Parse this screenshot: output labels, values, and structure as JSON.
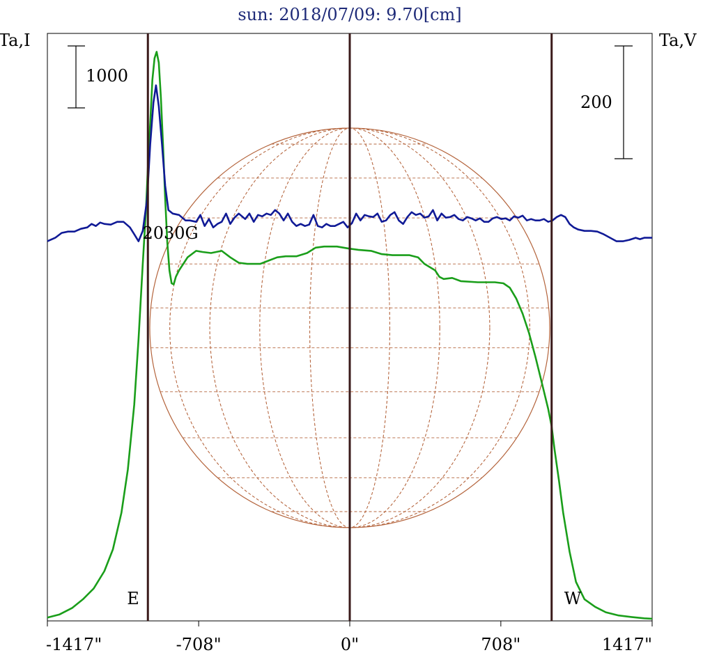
{
  "chart_data": {
    "type": "line",
    "title": "sun: 2018/07/09: 9.70[cm]",
    "ylabel_left": "Ta,I",
    "ylabel_right": "Ta,V",
    "scale_bar_left": "1000",
    "scale_bar_right": "200",
    "xlim": [
      -1417,
      1417
    ],
    "x_ticks": [
      {
        "value": -1417,
        "label": "-1417\""
      },
      {
        "value": -708,
        "label": "-708\""
      },
      {
        "value": 0,
        "label": "0\""
      },
      {
        "value": 708,
        "label": "708\""
      },
      {
        "value": 1417,
        "label": "1417\""
      }
    ],
    "limb_lines": [
      -946,
      0,
      946
    ],
    "limb_labels": [
      {
        "x": -946,
        "text": "E"
      },
      {
        "x": 946,
        "text": "W"
      }
    ],
    "annotation": {
      "x": -860,
      "text": "2030G"
    },
    "colors": {
      "intensity": "#1a9e1a",
      "polarization": "#101a96",
      "limb_line": "#3a1a1a",
      "disk": "#b4643c",
      "axes": "#000000",
      "title": "#1e2a78"
    },
    "series": [
      {
        "key": "I",
        "ylim": [
          0,
          2715
        ],
        "points": [
          [
            -1417,
            15
          ],
          [
            -1360,
            30
          ],
          [
            -1300,
            60
          ],
          [
            -1250,
            100
          ],
          [
            -1200,
            150
          ],
          [
            -1150,
            230
          ],
          [
            -1110,
            330
          ],
          [
            -1070,
            500
          ],
          [
            -1040,
            700
          ],
          [
            -1010,
            1000
          ],
          [
            -990,
            1300
          ],
          [
            -970,
            1650
          ],
          [
            -955,
            1900
          ],
          [
            -946,
            2100
          ],
          [
            -935,
            2300
          ],
          [
            -925,
            2500
          ],
          [
            -915,
            2600
          ],
          [
            -905,
            2630
          ],
          [
            -895,
            2580
          ],
          [
            -885,
            2420
          ],
          [
            -875,
            2200
          ],
          [
            -865,
            1950
          ],
          [
            -855,
            1750
          ],
          [
            -845,
            1620
          ],
          [
            -835,
            1560
          ],
          [
            -825,
            1555
          ],
          [
            -815,
            1590
          ],
          [
            -800,
            1620
          ],
          [
            -780,
            1650
          ],
          [
            -760,
            1680
          ],
          [
            -720,
            1710
          ],
          [
            -690,
            1705
          ],
          [
            -650,
            1700
          ],
          [
            -600,
            1710
          ],
          [
            -560,
            1680
          ],
          [
            -520,
            1655
          ],
          [
            -480,
            1650
          ],
          [
            -420,
            1650
          ],
          [
            -380,
            1665
          ],
          [
            -340,
            1680
          ],
          [
            -300,
            1685
          ],
          [
            -250,
            1685
          ],
          [
            -200,
            1700
          ],
          [
            -160,
            1725
          ],
          [
            -120,
            1730
          ],
          [
            -60,
            1730
          ],
          [
            0,
            1720
          ],
          [
            40,
            1715
          ],
          [
            100,
            1710
          ],
          [
            150,
            1695
          ],
          [
            200,
            1690
          ],
          [
            280,
            1690
          ],
          [
            320,
            1680
          ],
          [
            350,
            1650
          ],
          [
            400,
            1620
          ],
          [
            420,
            1590
          ],
          [
            440,
            1580
          ],
          [
            480,
            1585
          ],
          [
            520,
            1570
          ],
          [
            600,
            1565
          ],
          [
            680,
            1565
          ],
          [
            720,
            1560
          ],
          [
            750,
            1540
          ],
          [
            780,
            1490
          ],
          [
            810,
            1420
          ],
          [
            840,
            1330
          ],
          [
            870,
            1220
          ],
          [
            900,
            1100
          ],
          [
            930,
            980
          ],
          [
            946,
            900
          ],
          [
            960,
            790
          ],
          [
            980,
            650
          ],
          [
            1000,
            500
          ],
          [
            1030,
            320
          ],
          [
            1060,
            180
          ],
          [
            1100,
            100
          ],
          [
            1150,
            65
          ],
          [
            1200,
            40
          ],
          [
            1260,
            25
          ],
          [
            1320,
            18
          ],
          [
            1380,
            12
          ],
          [
            1417,
            10
          ]
        ]
      },
      {
        "key": "V",
        "ylim": [
          -548,
          300
        ],
        "points": [
          [
            -1417,
            0
          ],
          [
            -1380,
            5
          ],
          [
            -1350,
            12
          ],
          [
            -1320,
            14
          ],
          [
            -1290,
            14
          ],
          [
            -1260,
            18
          ],
          [
            -1230,
            20
          ],
          [
            -1210,
            25
          ],
          [
            -1190,
            22
          ],
          [
            -1170,
            27
          ],
          [
            -1150,
            25
          ],
          [
            -1120,
            24
          ],
          [
            -1090,
            28
          ],
          [
            -1060,
            28
          ],
          [
            -1030,
            20
          ],
          [
            -1010,
            10
          ],
          [
            -990,
            0
          ],
          [
            -970,
            15
          ],
          [
            -950,
            60
          ],
          [
            -935,
            140
          ],
          [
            -920,
            200
          ],
          [
            -908,
            225
          ],
          [
            -895,
            195
          ],
          [
            -880,
            140
          ],
          [
            -865,
            80
          ],
          [
            -850,
            45
          ],
          [
            -830,
            40
          ],
          [
            -800,
            38
          ],
          [
            -770,
            30
          ],
          [
            -750,
            30
          ],
          [
            -720,
            28
          ],
          [
            -700,
            38
          ],
          [
            -680,
            22
          ],
          [
            -660,
            32
          ],
          [
            -640,
            20
          ],
          [
            -620,
            25
          ],
          [
            -600,
            28
          ],
          [
            -580,
            40
          ],
          [
            -560,
            25
          ],
          [
            -540,
            34
          ],
          [
            -520,
            40
          ],
          [
            -490,
            32
          ],
          [
            -470,
            40
          ],
          [
            -450,
            28
          ],
          [
            -430,
            38
          ],
          [
            -410,
            36
          ],
          [
            -390,
            40
          ],
          [
            -370,
            38
          ],
          [
            -350,
            45
          ],
          [
            -330,
            40
          ],
          [
            -310,
            30
          ],
          [
            -290,
            40
          ],
          [
            -270,
            28
          ],
          [
            -250,
            22
          ],
          [
            -230,
            25
          ],
          [
            -210,
            22
          ],
          [
            -190,
            24
          ],
          [
            -170,
            38
          ],
          [
            -150,
            22
          ],
          [
            -130,
            20
          ],
          [
            -110,
            25
          ],
          [
            -90,
            22
          ],
          [
            -70,
            22
          ],
          [
            -50,
            25
          ],
          [
            -30,
            28
          ],
          [
            -10,
            20
          ],
          [
            10,
            26
          ],
          [
            30,
            40
          ],
          [
            50,
            30
          ],
          [
            70,
            38
          ],
          [
            90,
            36
          ],
          [
            110,
            35
          ],
          [
            130,
            40
          ],
          [
            150,
            28
          ],
          [
            170,
            30
          ],
          [
            190,
            38
          ],
          [
            210,
            42
          ],
          [
            230,
            30
          ],
          [
            250,
            25
          ],
          [
            270,
            35
          ],
          [
            290,
            42
          ],
          [
            310,
            38
          ],
          [
            330,
            40
          ],
          [
            350,
            34
          ],
          [
            370,
            36
          ],
          [
            390,
            45
          ],
          [
            410,
            30
          ],
          [
            430,
            40
          ],
          [
            450,
            34
          ],
          [
            470,
            35
          ],
          [
            490,
            38
          ],
          [
            510,
            32
          ],
          [
            530,
            30
          ],
          [
            550,
            35
          ],
          [
            570,
            33
          ],
          [
            590,
            30
          ],
          [
            610,
            33
          ],
          [
            630,
            28
          ],
          [
            650,
            28
          ],
          [
            670,
            33
          ],
          [
            690,
            35
          ],
          [
            710,
            32
          ],
          [
            730,
            33
          ],
          [
            750,
            30
          ],
          [
            770,
            36
          ],
          [
            790,
            34
          ],
          [
            810,
            37
          ],
          [
            830,
            30
          ],
          [
            850,
            32
          ],
          [
            870,
            30
          ],
          [
            890,
            30
          ],
          [
            910,
            32
          ],
          [
            930,
            28
          ],
          [
            950,
            30
          ],
          [
            970,
            35
          ],
          [
            990,
            38
          ],
          [
            1010,
            35
          ],
          [
            1030,
            25
          ],
          [
            1050,
            20
          ],
          [
            1070,
            17
          ],
          [
            1100,
            15
          ],
          [
            1130,
            15
          ],
          [
            1160,
            14
          ],
          [
            1190,
            10
          ],
          [
            1220,
            5
          ],
          [
            1250,
            0
          ],
          [
            1280,
            0
          ],
          [
            1310,
            2
          ],
          [
            1340,
            5
          ],
          [
            1360,
            3
          ],
          [
            1380,
            5
          ],
          [
            1400,
            5
          ],
          [
            1417,
            5
          ]
        ]
      }
    ]
  }
}
